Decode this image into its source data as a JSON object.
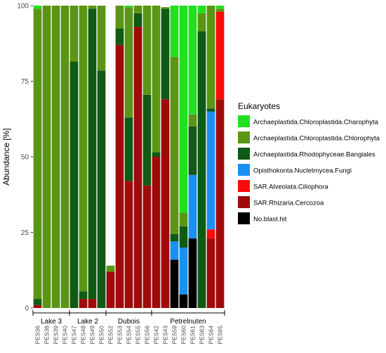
{
  "chart_data": {
    "type": "bar",
    "stacked": true,
    "ylabel": "Abundance [%]",
    "ylim": [
      0,
      100
    ],
    "yticks": [
      0,
      25,
      50,
      75,
      100
    ],
    "categories": [
      "PES36",
      "PES38",
      "PES39",
      "PES40",
      "PES47",
      "PES48",
      "PES49",
      "PES50",
      "PES52",
      "PES53",
      "PES54",
      "PES55",
      "PES56",
      "PES42",
      "PES43",
      "PES59",
      "PES60",
      "PES61",
      "PES63",
      "PES64",
      "PES65"
    ],
    "groups": [
      {
        "label": "Lake 3",
        "members": [
          "PES36",
          "PES38",
          "PES39",
          "PES40"
        ]
      },
      {
        "label": "Lake 2",
        "members": [
          "PES47",
          "PES48",
          "PES49",
          "PES50"
        ]
      },
      {
        "label": "Dubois",
        "members": [
          "PES52",
          "PES53",
          "PES54",
          "PES55",
          "PES56"
        ]
      },
      {
        "label": "Petrelnuten",
        "members": [
          "PES42",
          "PES43",
          "PES59",
          "PES60",
          "PES61",
          "PES63",
          "PES64",
          "PES65"
        ]
      }
    ],
    "legend": {
      "title": "Eukaryotes",
      "placement": "right",
      "entries": [
        {
          "name": "Archaeplastida.Chloroplastida.Charophyta",
          "color": "#20e020"
        },
        {
          "name": "Archaeplastida.Chloroplastida.Chlorophyta",
          "color": "#5b9515"
        },
        {
          "name": "Archaeplastida.Rhodophyceae.Bangiales",
          "color": "#0f5a14"
        },
        {
          "name": "Opisthokonta.Nucletmycea.Fungi",
          "color": "#1991f2"
        },
        {
          "name": "SAR.Alveolata.Ciliophora",
          "color": "#fa0b0b"
        },
        {
          "name": "SAR.Rhizaria.Cercozoa",
          "color": "#9f0a0a"
        },
        {
          "name": "No.blast.hit",
          "color": "#000000"
        }
      ]
    },
    "series": [
      {
        "name": "No.blast.hit",
        "values": [
          0,
          0,
          0,
          0,
          0,
          0,
          0,
          0,
          0,
          0,
          0,
          0,
          0,
          0,
          0,
          16,
          4.5,
          23,
          0,
          0,
          0
        ]
      },
      {
        "name": "SAR.Rhizaria.Cercozoa",
        "values": [
          1,
          0,
          0,
          0,
          0,
          3,
          3,
          0,
          12,
          87,
          42,
          93,
          40.5,
          50,
          69,
          0,
          0,
          0,
          0,
          23,
          69
        ]
      },
      {
        "name": "SAR.Alveolata.Ciliophora",
        "values": [
          0,
          0,
          0,
          0,
          0,
          0,
          0,
          0,
          0,
          0,
          0,
          0,
          0,
          0,
          0,
          0,
          0,
          0,
          0,
          3,
          29
        ]
      },
      {
        "name": "Opisthokonta.Nucletmycea.Fungi",
        "values": [
          0,
          0,
          0,
          0,
          0,
          0,
          0,
          0,
          0,
          0,
          0,
          0,
          0,
          0,
          0,
          6,
          15.5,
          21,
          0,
          39,
          0
        ]
      },
      {
        "name": "Archaeplastida.Rhodophyceae.Bangiales",
        "values": [
          2,
          0,
          0,
          0,
          81.5,
          2.5,
          96,
          78.5,
          0,
          5.5,
          21,
          4.5,
          30,
          1.5,
          30,
          2.5,
          7,
          16,
          91.5,
          1,
          0
        ]
      },
      {
        "name": "Archaeplastida.Chloroplastida.Chlorophyta",
        "values": [
          96,
          100,
          100,
          100,
          18.5,
          94.5,
          1,
          21.5,
          2,
          7.5,
          36.5,
          2.5,
          29.5,
          48.5,
          0.5,
          58.5,
          4.5,
          4,
          6,
          34,
          1
        ]
      },
      {
        "name": "Archaeplastida.Chloroplastida.Charophyta",
        "values": [
          1,
          0,
          0,
          0,
          0,
          0,
          0,
          0,
          0,
          0,
          0.5,
          0,
          0,
          0,
          0,
          17,
          68.5,
          36,
          2.5,
          0,
          1
        ]
      }
    ]
  }
}
